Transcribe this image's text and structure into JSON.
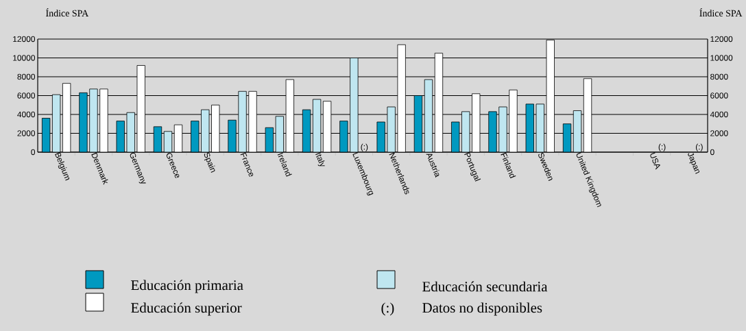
{
  "chart_data": {
    "type": "bar",
    "ylabel": "Índice SPA",
    "y2label": "Índice SPA",
    "categories": [
      "Belgium",
      "Denmark",
      "Germany",
      "Greece",
      "Spain",
      "France",
      "Ireland",
      "Italy",
      "Luxembourg",
      "Netherlands",
      "Austria",
      "Portugal",
      "Finland",
      "Sweden",
      "United Kingdom",
      null,
      "USA",
      "Japan"
    ],
    "series": [
      {
        "name": "Educación primaria",
        "color": "#0099c0",
        "values": [
          3600,
          6300,
          3300,
          2700,
          3300,
          3400,
          2600,
          4500,
          3300,
          3200,
          6000,
          3200,
          4300,
          5100,
          3000,
          null,
          null,
          null
        ]
      },
      {
        "name": "Educación secundaria",
        "color": "#bfe6f0",
        "values": [
          6100,
          6700,
          4200,
          2200,
          4500,
          6450,
          3800,
          5600,
          10000,
          4800,
          7700,
          4300,
          4800,
          5100,
          4400,
          null,
          null,
          null
        ]
      },
      {
        "name": "Educación superior",
        "color": "#ffffff",
        "values": [
          7300,
          6700,
          9200,
          2900,
          5000,
          6450,
          7700,
          5400,
          null,
          11400,
          10500,
          6200,
          6600,
          11900,
          7800,
          null,
          null,
          null
        ],
        "value_labels": [
          null,
          null,
          null,
          null,
          null,
          null,
          null,
          null,
          "(:)",
          null,
          null,
          null,
          null,
          null,
          null,
          null,
          "(:)",
          "(:)"
        ]
      }
    ],
    "ylim": [
      0,
      12000
    ],
    "yticks": [
      0,
      2000,
      4000,
      6000,
      8000,
      10000,
      12000
    ],
    "y2lim": [
      0,
      12000
    ],
    "y2ticks": [
      0,
      2000,
      4000,
      6000,
      8000,
      10000,
      12000
    ],
    "grid": "y",
    "legend": "bottom",
    "annotations": [
      "(:)",
      "Datos no disponibles"
    ]
  }
}
